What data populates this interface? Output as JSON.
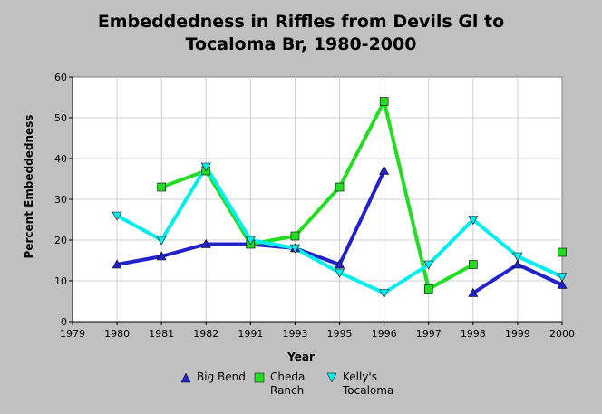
{
  "chart_data": {
    "type": "line",
    "title": [
      "Embeddedness in Riffles from Devils Gl to",
      "Tocaloma Br, 1980-2000"
    ],
    "xlabel": "Year",
    "ylabel": "Percent Embeddedness",
    "categories": [
      "1979",
      "1980",
      "1981",
      "1982",
      "1991",
      "1993",
      "1995",
      "1996",
      "1997",
      "1998",
      "1999",
      "2000"
    ],
    "ylim": [
      0,
      60
    ],
    "yticks": [
      0,
      10,
      20,
      30,
      40,
      50,
      60
    ],
    "grid": true,
    "legend_position": "bottom",
    "series": [
      {
        "name": "Big Bend",
        "color": "#2222cc",
        "marker": "triangle-up",
        "values": [
          null,
          14,
          16,
          19,
          19,
          18,
          14,
          37,
          null,
          7,
          14,
          9
        ]
      },
      {
        "name": "Cheda Ranch",
        "color": "#22dd22",
        "marker": "square",
        "values": [
          null,
          null,
          33,
          37,
          19,
          21,
          33,
          54,
          8,
          14,
          null,
          17
        ]
      },
      {
        "name": "Kelly's Tocaloma",
        "color": "#00eeee",
        "marker": "triangle-down",
        "values": [
          null,
          26,
          20,
          38,
          20,
          18,
          12,
          7,
          14,
          25,
          16,
          11
        ]
      }
    ]
  }
}
